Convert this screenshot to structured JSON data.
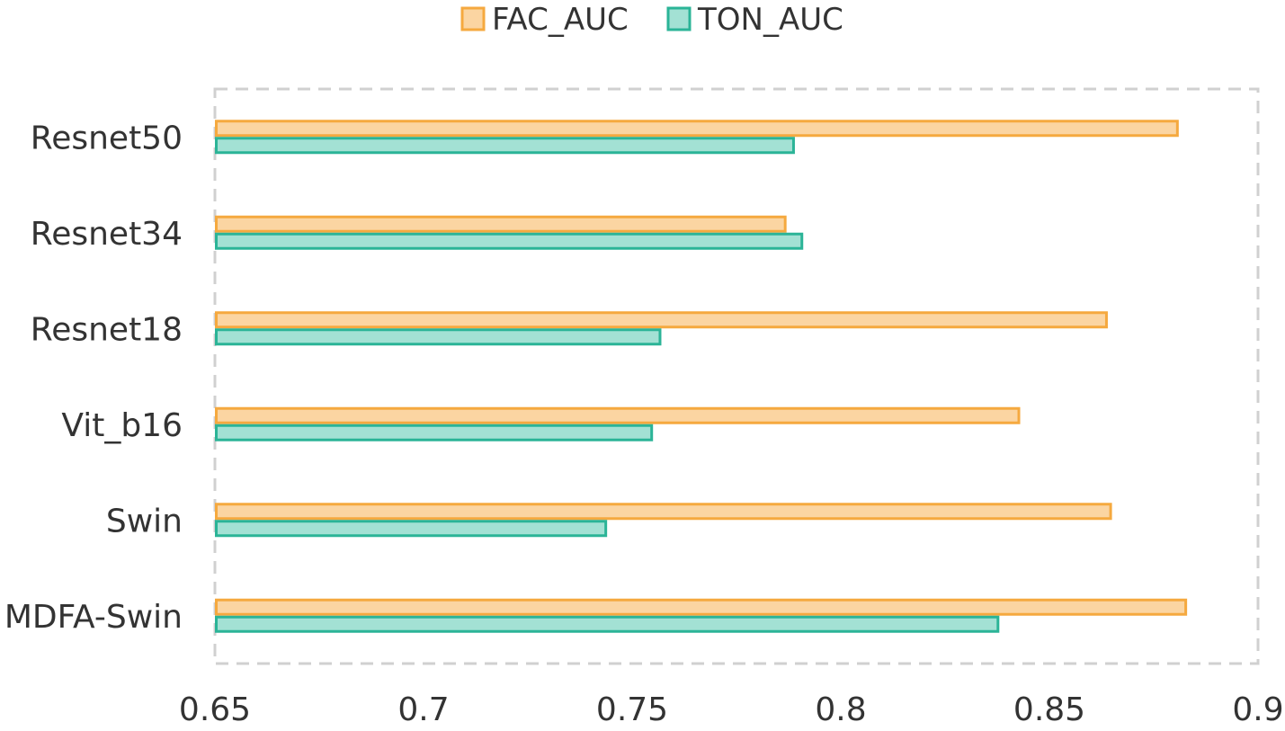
{
  "chart_data": {
    "type": "bar",
    "orientation": "horizontal",
    "categories": [
      "Resnet50",
      "Resnet34",
      "Resnet18",
      "Vit_b16",
      "Swin",
      "MDFA-Swin"
    ],
    "series": [
      {
        "name": "FAC_AUC",
        "values": [
          0.881,
          0.787,
          0.864,
          0.843,
          0.865,
          0.883
        ]
      },
      {
        "name": "TON_AUC",
        "values": [
          0.789,
          0.791,
          0.757,
          0.755,
          0.744,
          0.838
        ]
      }
    ],
    "xlim": [
      0.65,
      0.9
    ],
    "xticks": [
      "0.65",
      "0.7",
      "0.75",
      "0.8",
      "0.85",
      "0.9"
    ],
    "legend_position": "top",
    "grid": false,
    "colors": {
      "FAC_AUC": {
        "fill": "#FBD5A2",
        "stroke": "#F5A93F"
      },
      "TON_AUC": {
        "fill": "#A3E1D4",
        "stroke": "#2BB497"
      },
      "frame": "#D0D0D0",
      "text": "#333333"
    }
  }
}
